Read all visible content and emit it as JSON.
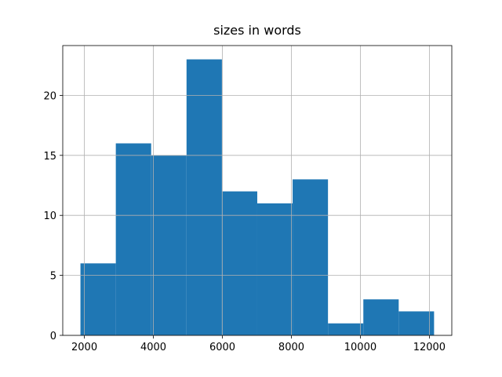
{
  "chart_data": {
    "type": "histogram",
    "title": "sizes in words",
    "bins": [
      1886,
      2911,
      3936,
      4961,
      5986,
      7011,
      8036,
      9061,
      10086,
      11111,
      12136
    ],
    "values": [
      6,
      16,
      15,
      23,
      12,
      11,
      13,
      1,
      3,
      2
    ],
    "color": "#1f77b4",
    "xlim": [
      1373,
      12650
    ],
    "xticks": [
      2000,
      4000,
      6000,
      8000,
      10000,
      12000
    ],
    "ylim": [
      0,
      24.15
    ],
    "yticks": [
      0,
      5,
      10,
      15,
      20
    ],
    "grid": true
  }
}
